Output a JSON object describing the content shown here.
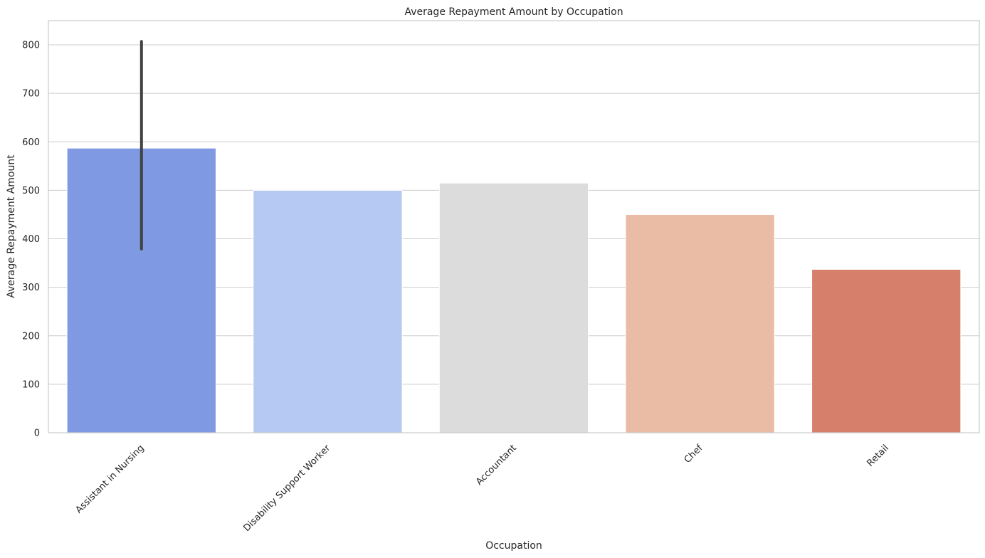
{
  "chart_data": {
    "type": "bar",
    "title": "Average Repayment Amount by Occupation",
    "xlabel": "Occupation",
    "ylabel": "Average Repayment Amount",
    "categories": [
      "Assistant in Nursing",
      "Disability Support Worker",
      "Accountant",
      "Chef",
      "Retail"
    ],
    "values": [
      587,
      500,
      515,
      450,
      337
    ],
    "error_bars": [
      [
        379,
        807
      ],
      null,
      null,
      null,
      null
    ],
    "colors": [
      "#7f99e2",
      "#b5c9f3",
      "#dcdcdc",
      "#ebbca5",
      "#d6806c"
    ],
    "ylim": [
      0,
      850
    ],
    "yticks": [
      0,
      100,
      200,
      300,
      400,
      500,
      600,
      700,
      800
    ],
    "ytick_labels": [
      "0",
      "100",
      "200",
      "300",
      "400",
      "500",
      "600",
      "700",
      "800"
    ],
    "grid": "y",
    "xtick_rotation": 45
  }
}
